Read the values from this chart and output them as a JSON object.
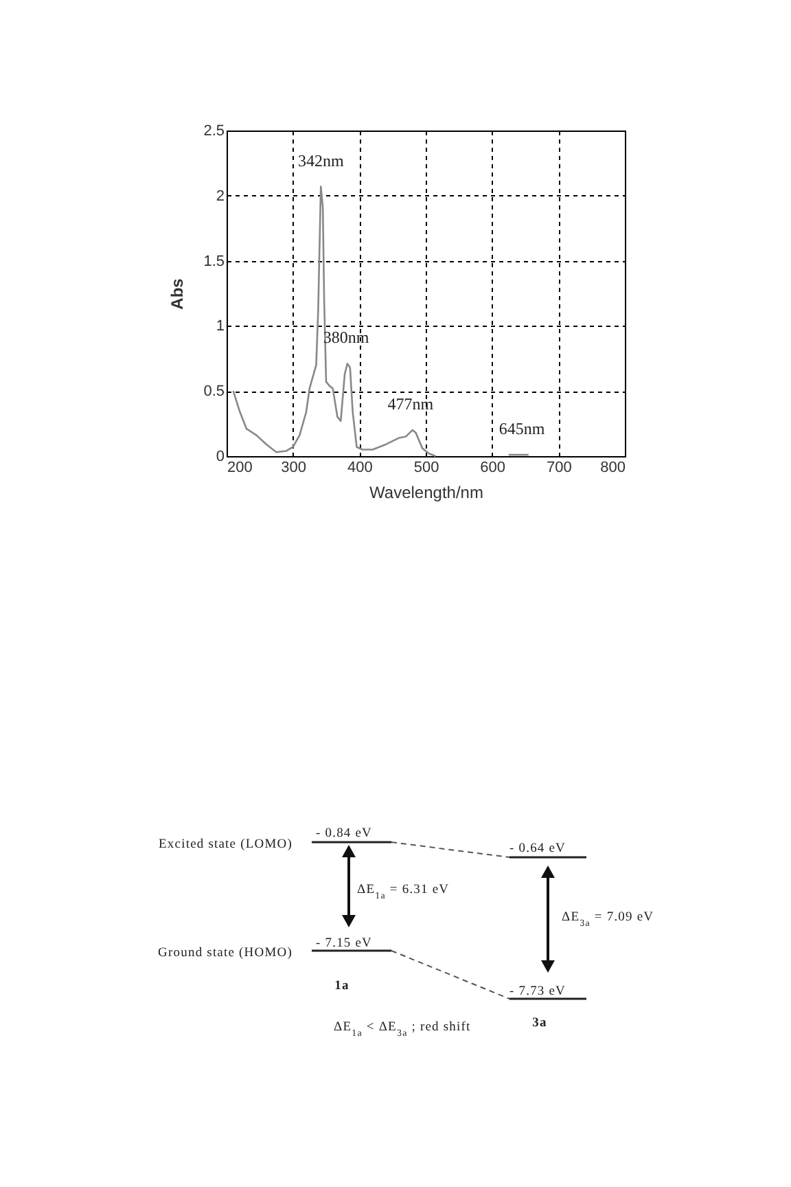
{
  "chart_data": [
    {
      "type": "line",
      "xlabel": "Wavelength/nm",
      "ylabel": "Abs",
      "xlim": [
        200,
        800
      ],
      "ylim": [
        0,
        2.5
      ],
      "xticks": [
        200,
        300,
        400,
        500,
        600,
        700,
        800
      ],
      "yticks": [
        0,
        0.5,
        1,
        1.5,
        2,
        2.5
      ],
      "grid": true,
      "series": [
        {
          "color": "#888888",
          "x": [
            210,
            220,
            230,
            245,
            260,
            275,
            290,
            300,
            310,
            320,
            325,
            335,
            338,
            342,
            345,
            347,
            350,
            355,
            360,
            367,
            372,
            378,
            382,
            386,
            390,
            396,
            405,
            420,
            440,
            460,
            470,
            480,
            485,
            495,
            505,
            515
          ],
          "values": [
            0.5,
            0.34,
            0.21,
            0.16,
            0.09,
            0.03,
            0.04,
            0.07,
            0.16,
            0.34,
            0.52,
            0.7,
            1.12,
            2.07,
            1.91,
            1.2,
            0.57,
            0.54,
            0.52,
            0.3,
            0.27,
            0.63,
            0.71,
            0.68,
            0.34,
            0.07,
            0.05,
            0.05,
            0.09,
            0.14,
            0.15,
            0.2,
            0.18,
            0.06,
            0.02,
            0
          ]
        },
        {
          "color": "#888888",
          "x": [
            625,
            655
          ],
          "values": [
            0.01,
            0.01
          ]
        }
      ],
      "annotations": [
        {
          "text": "342nm",
          "x": 342,
          "y": 2.07
        },
        {
          "text": "380nm",
          "x": 380,
          "y": 0.71
        },
        {
          "text": "477nm",
          "x": 477,
          "y": 0.2
        },
        {
          "text": "645nm",
          "x": 645,
          "y": 0.01
        }
      ]
    },
    {
      "type": "other",
      "annotations": [
        "Excited state (LOMO)",
        "Ground state (HOMO)",
        "- 0.84 eV",
        "- 7.15 eV",
        "- 0.64 eV",
        "- 7.73 eV",
        "ΔE$_{1a}$ = 6.31 eV",
        "ΔE$_{3a}$ = 7.09 eV",
        "1a",
        "3a",
        "ΔE$_{1a}$ < ΔE$_{3a}$ ; red shift"
      ]
    }
  ]
}
